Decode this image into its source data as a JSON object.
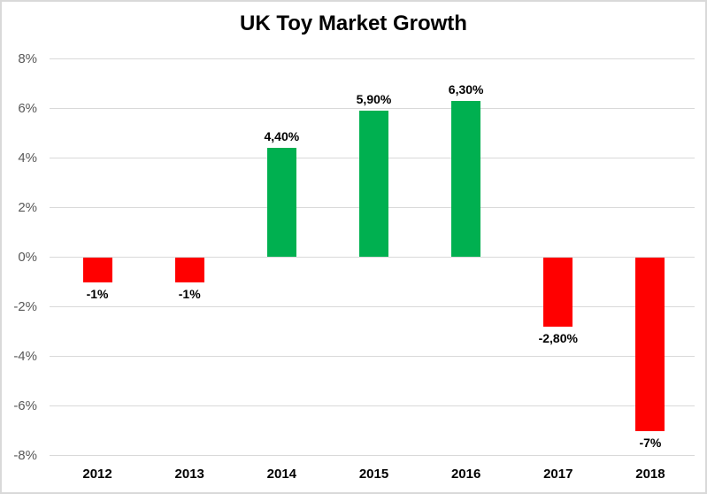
{
  "title": "UK Toy Market Growth",
  "chart_data": {
    "type": "bar",
    "title": "UK Toy Market Growth",
    "categories": [
      "2012",
      "2013",
      "2014",
      "2015",
      "2016",
      "2017",
      "2018"
    ],
    "values": [
      -1,
      -1,
      4.4,
      5.9,
      6.3,
      -2.8,
      -7
    ],
    "point_labels": [
      "-1%",
      "-1%",
      "4,40%",
      "5,90%",
      "6,30%",
      "-2,80%",
      "-7%"
    ],
    "xlabel": "",
    "ylabel": "",
    "ylim": [
      -8,
      8
    ],
    "ytick_step": 2,
    "ytick_labels": [
      "8%",
      "6%",
      "4%",
      "2%",
      "0%",
      "-2%",
      "-4%",
      "-6%",
      "-8%"
    ],
    "grid": true,
    "legend": false,
    "positive_color": "#00B050",
    "negative_color": "#FF0000",
    "axis_label_color": "#595959",
    "gridline_color": "#D9D9D9"
  }
}
